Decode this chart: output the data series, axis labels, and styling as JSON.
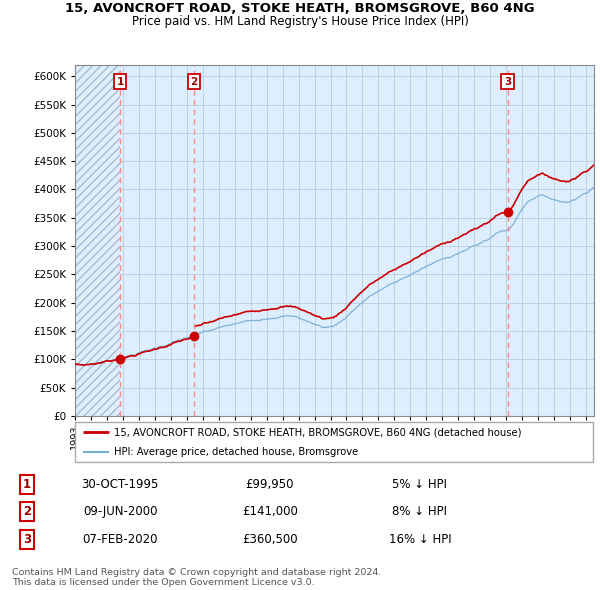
{
  "title_line1": "15, AVONCROFT ROAD, STOKE HEATH, BROMSGROVE, B60 4NG",
  "title_line2": "Price paid vs. HM Land Registry's House Price Index (HPI)",
  "ylabel_ticks": [
    "£0",
    "£50K",
    "£100K",
    "£150K",
    "£200K",
    "£250K",
    "£300K",
    "£350K",
    "£400K",
    "£450K",
    "£500K",
    "£550K",
    "£600K"
  ],
  "ytick_values": [
    0,
    50000,
    100000,
    150000,
    200000,
    250000,
    300000,
    350000,
    400000,
    450000,
    500000,
    550000,
    600000
  ],
  "ylim": [
    0,
    620000
  ],
  "xlim_start": 1993.0,
  "xlim_end": 2025.5,
  "sale_dates": [
    1995.83,
    2000.44,
    2020.09
  ],
  "sale_prices": [
    99950,
    141000,
    360500
  ],
  "sale_labels": [
    "1",
    "2",
    "3"
  ],
  "hpi_color": "#7aafd4",
  "price_color": "#cc0000",
  "dashed_color": "#ff8888",
  "plot_bg_color": "#ddeeff",
  "hatch_color": "#aabbcc",
  "grid_color": "#bbccdd",
  "legend_line1": "15, AVONCROFT ROAD, STOKE HEATH, BROMSGROVE, B60 4NG (detached house)",
  "legend_line2": "HPI: Average price, detached house, Bromsgrove",
  "table_entries": [
    {
      "label": "1",
      "date": "30-OCT-1995",
      "price": "£99,950",
      "hpi": "5% ↓ HPI"
    },
    {
      "label": "2",
      "date": "09-JUN-2000",
      "price": "£141,000",
      "hpi": "8% ↓ HPI"
    },
    {
      "label": "3",
      "date": "07-FEB-2020",
      "price": "£360,500",
      "hpi": "16% ↓ HPI"
    }
  ],
  "footer": "Contains HM Land Registry data © Crown copyright and database right 2024.\nThis data is licensed under the Open Government Licence v3.0."
}
